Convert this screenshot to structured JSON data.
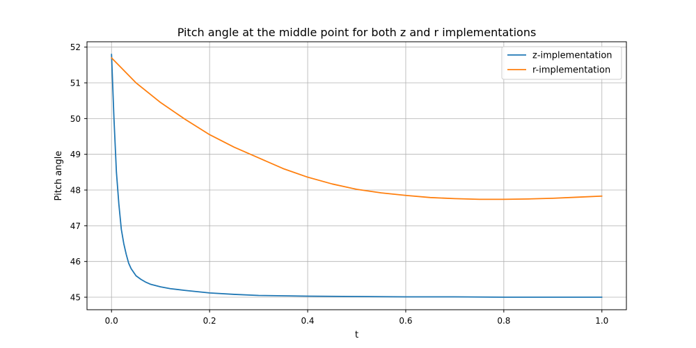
{
  "chart_data": {
    "type": "line",
    "title": "Pitch angle at the middle point for both z and r implementations",
    "xlabel": "t",
    "ylabel": "Pitch angle",
    "xlim": [
      -0.05,
      1.05
    ],
    "ylim": [
      44.65,
      52.15
    ],
    "xticks": [
      0.0,
      0.2,
      0.4,
      0.6,
      0.8,
      1.0
    ],
    "xtick_labels": [
      "0.0",
      "0.2",
      "0.4",
      "0.6",
      "0.8",
      "1.0"
    ],
    "yticks": [
      45,
      46,
      47,
      48,
      49,
      50,
      51,
      52
    ],
    "ytick_labels": [
      "45",
      "46",
      "47",
      "48",
      "49",
      "50",
      "51",
      "52"
    ],
    "grid": true,
    "legend_position": "top-right",
    "series": [
      {
        "name": "z-implementation",
        "color": "#1f77b4",
        "x": [
          0.0,
          0.005,
          0.01,
          0.015,
          0.02,
          0.025,
          0.03,
          0.035,
          0.04,
          0.05,
          0.06,
          0.07,
          0.08,
          0.1,
          0.12,
          0.15,
          0.2,
          0.25,
          0.3,
          0.4,
          0.5,
          0.6,
          0.7,
          0.8,
          0.9,
          1.0
        ],
        "y": [
          51.8,
          50.0,
          48.5,
          47.6,
          46.9,
          46.5,
          46.2,
          45.95,
          45.8,
          45.6,
          45.5,
          45.42,
          45.36,
          45.29,
          45.24,
          45.19,
          45.12,
          45.08,
          45.05,
          45.03,
          45.02,
          45.01,
          45.01,
          45.0,
          45.0,
          45.0
        ]
      },
      {
        "name": "r-implementation",
        "color": "#ff7f0e",
        "x": [
          0.0,
          0.05,
          0.1,
          0.15,
          0.2,
          0.25,
          0.3,
          0.35,
          0.4,
          0.45,
          0.5,
          0.55,
          0.6,
          0.65,
          0.7,
          0.75,
          0.8,
          0.85,
          0.9,
          0.95,
          1.0
        ],
        "y": [
          51.7,
          51.0,
          50.45,
          49.98,
          49.55,
          49.2,
          48.9,
          48.6,
          48.36,
          48.17,
          48.02,
          47.92,
          47.85,
          47.79,
          47.76,
          47.74,
          47.74,
          47.75,
          47.77,
          47.8,
          47.83
        ]
      }
    ]
  }
}
